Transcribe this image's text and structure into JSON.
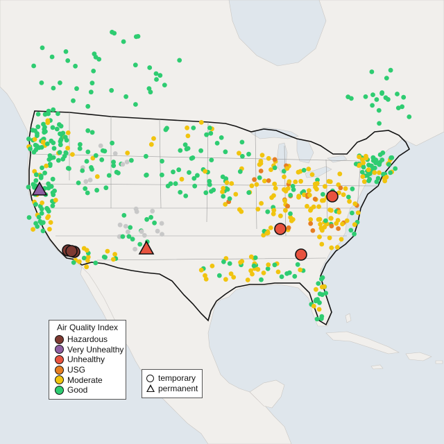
{
  "legend": {
    "title": "Air Quality Index",
    "categories": [
      {
        "label": "Hazardous",
        "color": "#7e3a32"
      },
      {
        "label": "Very Unhealthy",
        "color": "#8e5ea2"
      },
      {
        "label": "Unhealthy",
        "color": "#e8533f"
      },
      {
        "label": "USG",
        "color": "#e67e22"
      },
      {
        "label": "Moderate",
        "color": "#f1c40f"
      },
      {
        "label": "Good",
        "color": "#2ecc71"
      }
    ]
  },
  "type_legend": {
    "temporary_label": "temporary",
    "permanent_label": "permanent"
  },
  "colors": {
    "water": "#dfe6ec",
    "land": "#f1efec",
    "no_data": "#c8c8c8"
  }
}
